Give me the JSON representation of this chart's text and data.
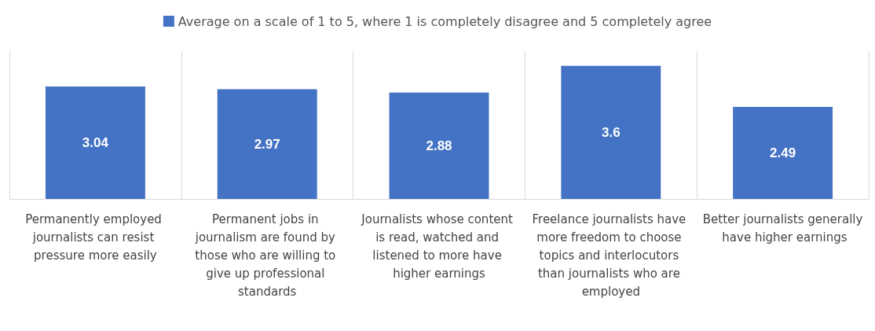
{
  "chart_data": {
    "type": "bar",
    "categories": [
      "Permanently employed journalists can resist pressure more easily",
      "Permanent jobs in journalism are found by those who are willing to give up professional standards",
      "Journalists whose content is read, watched and listened to more have higher earnings",
      "Freelance journalists have more freedom to choose topics and interlocutors than journalists who are employed",
      "Better journalists generally have higher earnings"
    ],
    "series": [
      {
        "name": "Average on a scale of 1 to 5, where 1 is completely disagree and 5 completely agree",
        "color": "#4472c4",
        "values": [
          3.04,
          2.97,
          2.88,
          3.6,
          2.49
        ]
      }
    ],
    "data_labels": true,
    "grid": "x",
    "legend": "top",
    "tick_labels": "x"
  }
}
